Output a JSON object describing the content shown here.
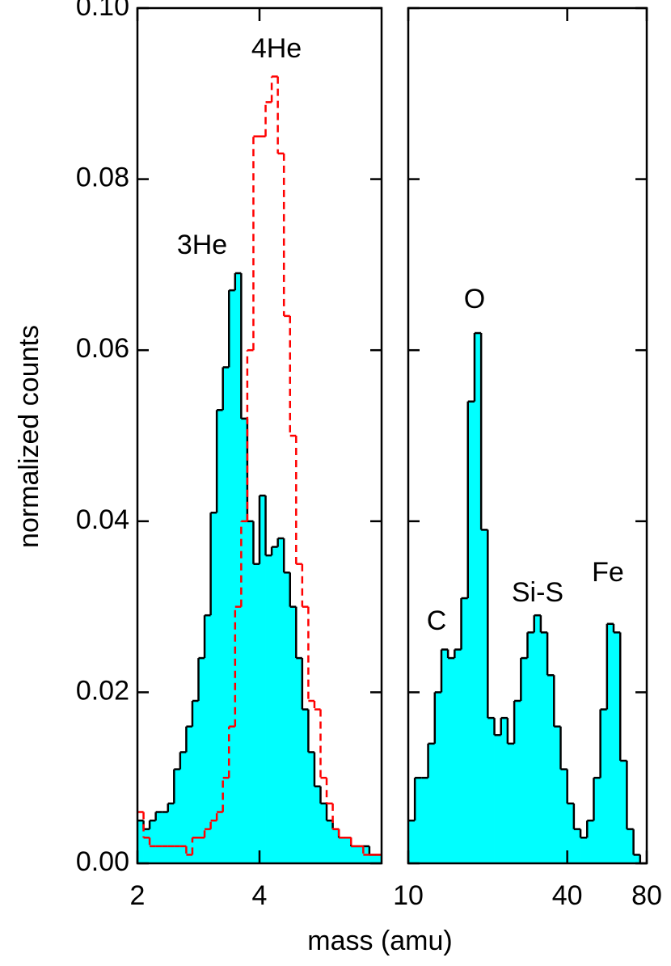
{
  "chart_data": [
    {
      "type": "histogram",
      "xlabel": "mass (amu)",
      "ylabel": "normalized counts",
      "bins": [
        2.0,
        2.1,
        2.2,
        2.3,
        2.4,
        2.5,
        2.6,
        2.7,
        2.8,
        2.9,
        3.0,
        3.1,
        3.2,
        3.3,
        3.4,
        3.5,
        3.6,
        3.7,
        3.8,
        3.9,
        4.0,
        4.1,
        4.2,
        4.3,
        4.4,
        4.5,
        4.6,
        4.7,
        4.8,
        4.9,
        5.0,
        5.1,
        5.2,
        5.3,
        5.4,
        5.5,
        5.6,
        5.7,
        5.8,
        5.9,
        6.0
      ],
      "series": [
        {
          "name": "3He",
          "color": "#00ffff",
          "style": "filled",
          "values": [
            0.005,
            0.004,
            0.005,
            0.006,
            0.006,
            0.007,
            0.011,
            0.013,
            0.016,
            0.019,
            0.024,
            0.029,
            0.041,
            0.053,
            0.058,
            0.067,
            0.069,
            0.052,
            0.04,
            0.035,
            0.043,
            0.036,
            0.037,
            0.038,
            0.034,
            0.03,
            0.024,
            0.018,
            0.013,
            0.009,
            0.007,
            0.005,
            0.004,
            0.003,
            0.003,
            0.002,
            0.002,
            0.002,
            0.001,
            0.001
          ]
        },
        {
          "name": "4He",
          "color": "#ff0000",
          "style": "dashed",
          "values": [
            0.006,
            0.003,
            0.002,
            0.002,
            0.002,
            0.002,
            0.002,
            0.002,
            0.001,
            0.003,
            0.003,
            0.004,
            0.005,
            0.006,
            0.01,
            0.016,
            0.03,
            0.04,
            0.06,
            0.085,
            0.085,
            0.089,
            0.092,
            0.083,
            0.064,
            0.05,
            0.035,
            0.03,
            0.019,
            0.018,
            0.01,
            0.007,
            0.004,
            0.003,
            0.003,
            0.002,
            0.002,
            0.001,
            0.001,
            0.001
          ]
        }
      ],
      "xlim": [
        2,
        6
      ],
      "xticks": [
        2,
        4
      ],
      "ylim": [
        0,
        0.1
      ],
      "yticks": [
        {
          "value": 0,
          "label": "0.00"
        },
        {
          "value": 0.02,
          "label": "0.02"
        },
        {
          "value": 0.04,
          "label": "0.04"
        },
        {
          "value": 0.06,
          "label": "0.06"
        },
        {
          "value": 0.08,
          "label": "0.08"
        },
        {
          "value": 0.1,
          "label": "0.10"
        }
      ]
    },
    {
      "type": "histogram",
      "log_x": true,
      "bins": [
        10,
        10.59,
        11.22,
        11.89,
        12.6,
        13.35,
        14.14,
        14.98,
        15.87,
        16.82,
        17.82,
        18.88,
        20,
        21.19,
        22.45,
        23.78,
        25.2,
        26.7,
        28.28,
        29.97,
        31.75,
        33.64,
        35.64,
        37.76,
        40,
        42.38,
        44.9,
        47.57,
        50.4,
        53.39,
        56.57,
        59.93,
        63.5,
        67.27,
        71.27,
        75.51,
        80
      ],
      "series": [
        {
          "color": "#00ffff",
          "style": "filled",
          "values": [
            0.005,
            0.01,
            0.01,
            0.014,
            0.02,
            0.025,
            0.024,
            0.025,
            0.031,
            0.054,
            0.062,
            0.039,
            0.017,
            0.015,
            0.017,
            0.014,
            0.019,
            0.024,
            0.027,
            0.029,
            0.027,
            0.022,
            0.016,
            0.011,
            0.007,
            0.004,
            0.003,
            0.005,
            0.01,
            0.018,
            0.028,
            0.027,
            0.012,
            0.004,
            0.001,
            0.0
          ]
        }
      ],
      "annotations": [
        "C",
        "O",
        "Si-S",
        "Fe"
      ],
      "xlim": [
        10,
        80
      ],
      "xticks": [
        10,
        40,
        80
      ],
      "ylim": [
        0,
        0.1
      ],
      "yticks": [
        0,
        0.02,
        0.04,
        0.06,
        0.08,
        0.1
      ]
    }
  ]
}
